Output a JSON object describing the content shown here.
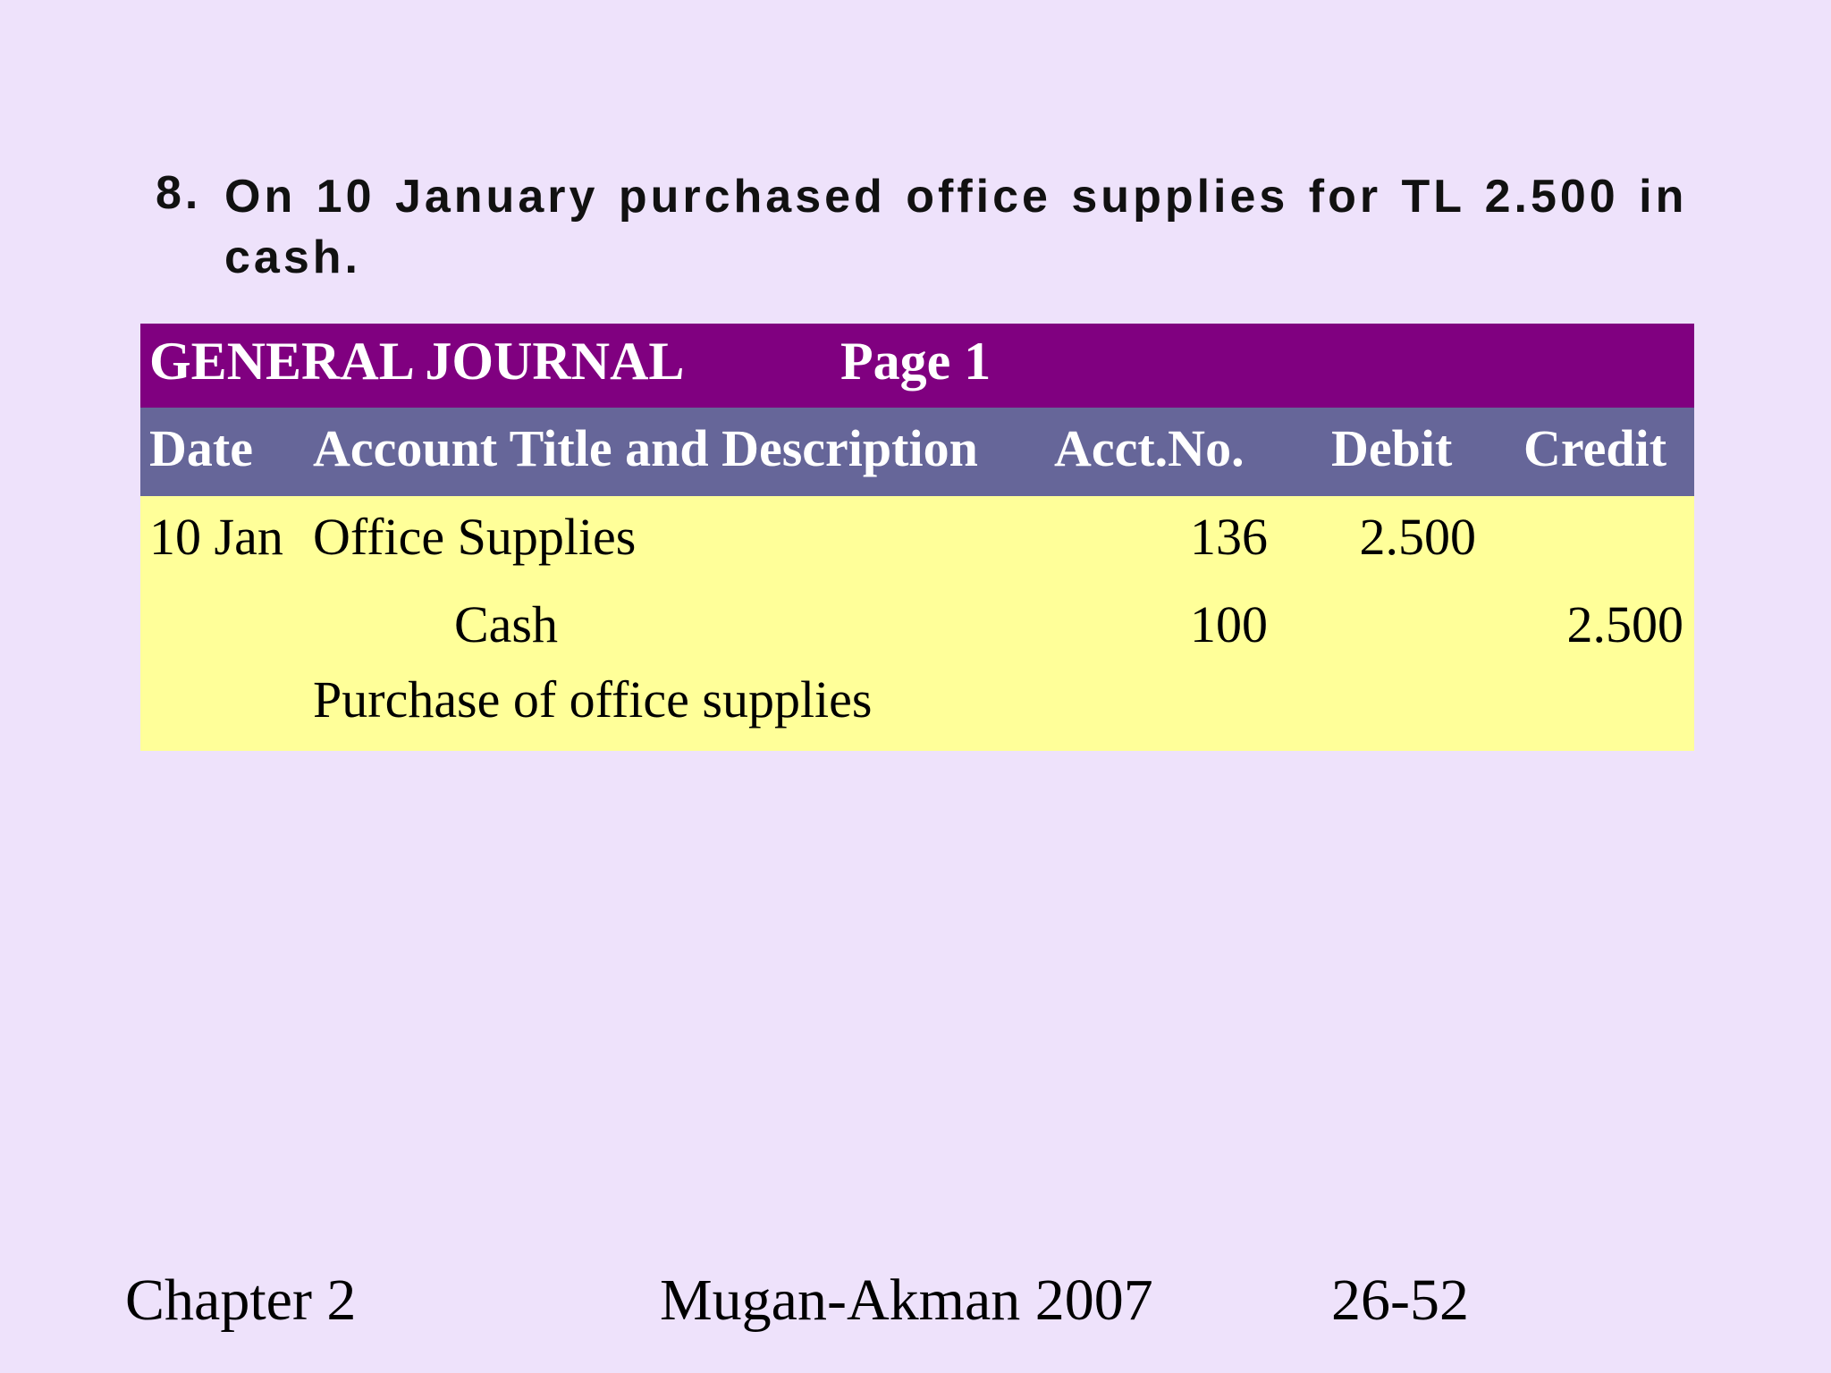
{
  "heading": {
    "number": "8.",
    "text": "On 10 January purchased office supplies for TL 2.500 in cash."
  },
  "journal": {
    "title": "GENERAL JOURNAL",
    "page": "Page  1",
    "columns": [
      "Date",
      "Account Title and Description",
      "Acct.No.",
      "Debit",
      "Credit"
    ],
    "rows": [
      [
        "10 Jan",
        "Office Supplies",
        "136",
        "2.500",
        ""
      ],
      [
        "",
        "Cash",
        "100",
        "",
        "2.500"
      ],
      [
        "",
        "Purchase of office supplies",
        "",
        "",
        ""
      ]
    ]
  },
  "footer": {
    "left": "Chapter 2",
    "center": "Mugan-Akman 2007",
    "right": "26-52"
  }
}
